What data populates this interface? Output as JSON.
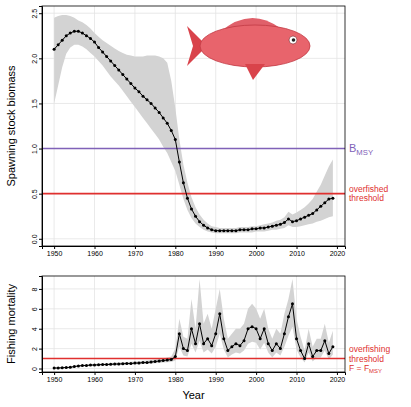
{
  "chart_data": [
    {
      "type": "line",
      "y_label": "Spawning stock biomass",
      "x": [
        1950,
        1951,
        1952,
        1953,
        1954,
        1955,
        1956,
        1957,
        1958,
        1959,
        1960,
        1961,
        1962,
        1963,
        1964,
        1965,
        1966,
        1967,
        1968,
        1969,
        1970,
        1971,
        1972,
        1973,
        1974,
        1975,
        1976,
        1977,
        1978,
        1979,
        1980,
        1981,
        1982,
        1983,
        1984,
        1985,
        1986,
        1987,
        1988,
        1989,
        1990,
        1991,
        1992,
        1993,
        1994,
        1995,
        1996,
        1997,
        1998,
        1999,
        2000,
        2001,
        2002,
        2003,
        2004,
        2005,
        2006,
        2007,
        2008,
        2009,
        2010,
        2011,
        2012,
        2013,
        2014,
        2015,
        2016,
        2017,
        2018,
        2019
      ],
      "xlim": [
        1947,
        2022
      ],
      "xticks": [
        1950,
        1960,
        1970,
        1980,
        1990,
        2000,
        2010,
        2020
      ],
      "ylim": [
        -0.08,
        2.58
      ],
      "yticks": [
        {
          "value": 0,
          "label": "0.0"
        },
        0.5,
        {
          "value": 1,
          "label": "1.0"
        },
        1.5,
        {
          "value": 2,
          "label": "2.0"
        },
        2.5
      ],
      "grid": true,
      "series": [
        {
          "color": "#000000",
          "marker": "circle",
          "line_style": "solid",
          "values": [
            2.1,
            2.15,
            2.2,
            2.25,
            2.28,
            2.3,
            2.3,
            2.28,
            2.25,
            2.22,
            2.18,
            2.12,
            2.07,
            2.02,
            1.97,
            1.92,
            1.87,
            1.82,
            1.77,
            1.72,
            1.67,
            1.63,
            1.58,
            1.54,
            1.5,
            1.45,
            1.4,
            1.34,
            1.28,
            1.2,
            1.1,
            0.85,
            0.62,
            0.45,
            0.33,
            0.25,
            0.19,
            0.15,
            0.12,
            0.1,
            0.09,
            0.09,
            0.09,
            0.09,
            0.09,
            0.09,
            0.1,
            0.1,
            0.1,
            0.11,
            0.11,
            0.12,
            0.12,
            0.13,
            0.14,
            0.15,
            0.16,
            0.18,
            0.22,
            0.19,
            0.2,
            0.22,
            0.24,
            0.26,
            0.28,
            0.32,
            0.36,
            0.4,
            0.44,
            0.45
          ]
        }
      ],
      "band": {
        "color": "#d3d3d3",
        "upper": [
          2.45,
          2.47,
          2.48,
          2.48,
          2.47,
          2.45,
          2.42,
          2.4,
          2.37,
          2.33,
          2.28,
          2.24,
          2.2,
          2.17,
          2.14,
          2.11,
          2.08,
          2.06,
          2.04,
          2.03,
          2.02,
          2.02,
          2.02,
          2.03,
          2.03,
          2.03,
          2.02,
          2.0,
          1.95,
          1.75,
          1.45,
          1.1,
          0.82,
          0.62,
          0.46,
          0.35,
          0.27,
          0.21,
          0.17,
          0.14,
          0.13,
          0.12,
          0.12,
          0.12,
          0.12,
          0.12,
          0.13,
          0.13,
          0.13,
          0.14,
          0.14,
          0.15,
          0.16,
          0.17,
          0.18,
          0.2,
          0.21,
          0.24,
          0.3,
          0.27,
          0.29,
          0.32,
          0.35,
          0.39,
          0.44,
          0.52,
          0.6,
          0.7,
          0.8,
          0.88
        ],
        "lower": [
          1.5,
          1.7,
          1.9,
          2.05,
          2.12,
          2.15,
          2.15,
          2.13,
          2.1,
          2.06,
          2.02,
          1.97,
          1.92,
          1.86,
          1.8,
          1.75,
          1.7,
          1.64,
          1.58,
          1.52,
          1.46,
          1.4,
          1.34,
          1.28,
          1.22,
          1.16,
          1.1,
          1.02,
          0.95,
          0.85,
          0.75,
          0.6,
          0.44,
          0.32,
          0.23,
          0.17,
          0.13,
          0.1,
          0.08,
          0.07,
          0.06,
          0.06,
          0.06,
          0.06,
          0.06,
          0.06,
          0.07,
          0.07,
          0.07,
          0.07,
          0.08,
          0.08,
          0.08,
          0.09,
          0.1,
          0.1,
          0.11,
          0.12,
          0.15,
          0.13,
          0.13,
          0.14,
          0.15,
          0.16,
          0.17,
          0.19,
          0.2,
          0.22,
          0.24,
          0.25
        ]
      },
      "annotations": [
        {
          "y": 1.0,
          "color": "#8062b8",
          "lines": [
            {
              "text": "B",
              "sub": "MSY"
            }
          ]
        },
        {
          "y": 0.5,
          "color": "#e0302f",
          "lines": [
            {
              "text": "overfished"
            },
            {
              "text": "threshold"
            }
          ]
        }
      ]
    },
    {
      "type": "line",
      "y_label": "Fishing mortality",
      "x_label": "Year",
      "x": [
        1950,
        1951,
        1952,
        1953,
        1954,
        1955,
        1956,
        1957,
        1958,
        1959,
        1960,
        1961,
        1962,
        1963,
        1964,
        1965,
        1966,
        1967,
        1968,
        1969,
        1970,
        1971,
        1972,
        1973,
        1974,
        1975,
        1976,
        1977,
        1978,
        1979,
        1980,
        1981,
        1982,
        1983,
        1984,
        1985,
        1986,
        1987,
        1988,
        1989,
        1990,
        1991,
        1992,
        1993,
        1994,
        1995,
        1996,
        1997,
        1998,
        1999,
        2000,
        2001,
        2002,
        2003,
        2004,
        2005,
        2006,
        2007,
        2008,
        2009,
        2010,
        2011,
        2012,
        2013,
        2014,
        2015,
        2016,
        2017,
        2018,
        2019
      ],
      "xlim": [
        1947,
        2022
      ],
      "xticks": [
        1950,
        1960,
        1970,
        1980,
        1990,
        2000,
        2010,
        2020
      ],
      "ylim": [
        -0.35,
        9.3
      ],
      "yticks": [
        0,
        2,
        4,
        6,
        8
      ],
      "grid": true,
      "series": [
        {
          "color": "#000000",
          "marker": "circle",
          "line_style": "solid",
          "values": [
            0.05,
            0.05,
            0.08,
            0.1,
            0.12,
            0.2,
            0.25,
            0.3,
            0.3,
            0.35,
            0.35,
            0.38,
            0.4,
            0.4,
            0.42,
            0.45,
            0.45,
            0.48,
            0.5,
            0.5,
            0.55,
            0.55,
            0.6,
            0.6,
            0.65,
            0.7,
            0.75,
            0.8,
            0.85,
            0.9,
            1.2,
            3.5,
            2.0,
            1.8,
            4.0,
            2.5,
            4.5,
            2.5,
            3.0,
            2.3,
            3.5,
            5.5,
            3.0,
            1.8,
            2.2,
            2.5,
            2.3,
            2.8,
            4.0,
            4.2,
            4.0,
            3.0,
            4.0,
            2.5,
            1.8,
            2.5,
            2.0,
            3.5,
            5.2,
            6.5,
            3.0,
            1.8,
            1.0,
            2.5,
            1.2,
            1.8,
            1.8,
            2.8,
            1.5,
            2.2
          ]
        }
      ],
      "band": {
        "color": "#d3d3d3",
        "upper": [
          0.1,
          0.1,
          0.12,
          0.15,
          0.18,
          0.28,
          0.33,
          0.38,
          0.4,
          0.45,
          0.45,
          0.48,
          0.5,
          0.52,
          0.55,
          0.58,
          0.6,
          0.63,
          0.65,
          0.68,
          0.7,
          0.72,
          0.78,
          0.8,
          0.85,
          0.9,
          0.95,
          1.0,
          1.1,
          1.2,
          2.0,
          5.0,
          3.2,
          3.0,
          7.0,
          4.0,
          9.0,
          4.5,
          5.5,
          4.0,
          6.0,
          8.0,
          5.0,
          3.0,
          3.5,
          4.0,
          4.0,
          4.5,
          6.0,
          6.5,
          6.0,
          5.0,
          6.0,
          4.0,
          3.0,
          4.0,
          3.5,
          5.5,
          7.0,
          9.0,
          5.0,
          3.2,
          1.8,
          4.0,
          2.2,
          3.0,
          3.0,
          4.5,
          2.6,
          3.8
        ],
        "lower": [
          0.02,
          0.02,
          0.04,
          0.06,
          0.08,
          0.14,
          0.18,
          0.22,
          0.22,
          0.26,
          0.26,
          0.28,
          0.3,
          0.3,
          0.32,
          0.34,
          0.34,
          0.36,
          0.38,
          0.38,
          0.42,
          0.42,
          0.45,
          0.45,
          0.5,
          0.52,
          0.55,
          0.6,
          0.62,
          0.65,
          0.8,
          2.2,
          1.3,
          1.2,
          2.5,
          1.6,
          2.8,
          1.6,
          1.9,
          1.5,
          2.2,
          3.5,
          1.9,
          1.1,
          1.4,
          1.6,
          1.5,
          1.8,
          2.5,
          2.7,
          2.6,
          1.9,
          2.6,
          1.6,
          1.1,
          1.6,
          1.3,
          2.2,
          3.3,
          4.2,
          1.9,
          1.1,
          0.6,
          1.6,
          0.7,
          1.1,
          1.1,
          1.8,
          0.9,
          1.4
        ]
      },
      "annotations": [
        {
          "y": 1.0,
          "color": "#e0302f",
          "lines": [
            {
              "text": "overfishing"
            },
            {
              "text": "threshold"
            },
            {
              "text": "F = F",
              "sub": "MSY"
            }
          ]
        }
      ]
    }
  ]
}
